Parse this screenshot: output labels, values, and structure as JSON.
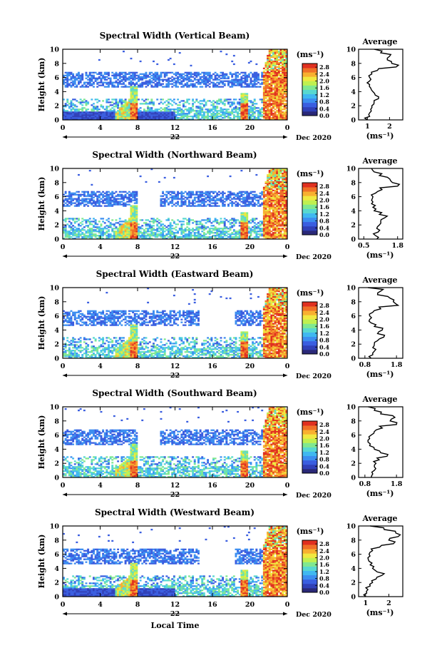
{
  "chart_data": [
    {
      "type": "heatmap",
      "title": "Spectral Width (Vertical Beam)",
      "ylabel": "Height (km)",
      "ylim": [
        0,
        10
      ],
      "yticks": [
        "0",
        "2",
        "4",
        "6",
        "8",
        "10"
      ],
      "xticks": [
        "0",
        "4",
        "8",
        "12",
        "16",
        "20",
        "0"
      ],
      "xlim": [
        0,
        24
      ],
      "date_label": "22",
      "date_suffix": "Dec 2020",
      "colorbar": {
        "unit": "(ms⁻¹)",
        "ticks": [
          "0.0",
          "0.4",
          "0.8",
          "1.2",
          "1.6",
          "2.0",
          "2.4",
          "2.8"
        ]
      },
      "profile": {
        "title": "Average",
        "xlabel": "(ms⁻¹)",
        "xticks": [
          "1",
          "2"
        ],
        "xlim": [
          0.6,
          2.6
        ],
        "height": [
          0,
          0.5,
          1,
          1.5,
          2,
          2.5,
          3,
          3.5,
          4,
          4.5,
          5,
          5.5,
          6,
          6.5,
          7,
          7.5,
          8,
          8.5,
          9,
          9.5,
          10
        ],
        "values": [
          1.0,
          1.1,
          1.1,
          1.15,
          1.2,
          1.3,
          1.5,
          1.35,
          1.25,
          1.15,
          1.1,
          1.1,
          1.1,
          1.2,
          1.45,
          2.3,
          2.1,
          1.9,
          2.0,
          1.6,
          1.3
        ]
      }
    },
    {
      "type": "heatmap",
      "title": "Spectral Width (Northward Beam)",
      "ylabel": "Height (km)",
      "ylim": [
        0,
        10
      ],
      "yticks": [
        "0",
        "2",
        "4",
        "6",
        "8",
        "10"
      ],
      "xticks": [
        "0",
        "4",
        "8",
        "12",
        "16",
        "20",
        "0"
      ],
      "xlim": [
        0,
        24
      ],
      "date_label": "22",
      "date_suffix": "Dec 2020",
      "colorbar": {
        "unit": "(ms⁻¹)",
        "ticks": [
          "0.0",
          "0.4",
          "0.8",
          "1.2",
          "1.6",
          "2.0",
          "2.4",
          "2.8"
        ]
      },
      "profile": {
        "title": "Average",
        "xlabel": "(ms⁻¹)",
        "xticks": [
          "0.5",
          "1.8"
        ],
        "xlim": [
          0.3,
          2.0
        ],
        "height": [
          0,
          0.5,
          1,
          1.5,
          2,
          2.5,
          3,
          3.5,
          4,
          4.5,
          5,
          5.5,
          6,
          6.5,
          7,
          7.5,
          8,
          8.5,
          9,
          9.5,
          10
        ],
        "values": [
          1.0,
          0.95,
          1.05,
          1.0,
          1.1,
          1.15,
          1.3,
          1.1,
          0.9,
          0.85,
          0.8,
          0.8,
          0.85,
          0.95,
          1.2,
          1.8,
          1.6,
          1.5,
          1.1,
          0.9,
          0.8
        ]
      }
    },
    {
      "type": "heatmap",
      "title": "Spectral Width (Eastward Beam)",
      "ylabel": "Height (km)",
      "ylim": [
        0,
        10
      ],
      "yticks": [
        "0",
        "2",
        "4",
        "6",
        "8",
        "10"
      ],
      "xticks": [
        "0",
        "4",
        "8",
        "12",
        "16",
        "20",
        "0"
      ],
      "xlim": [
        0,
        24
      ],
      "date_label": "22",
      "date_suffix": "Dec 2020",
      "colorbar": {
        "unit": "(ms⁻¹)",
        "ticks": [
          "0.0",
          "0.4",
          "0.8",
          "1.2",
          "1.6",
          "2.0",
          "2.4",
          "2.8"
        ]
      },
      "profile": {
        "title": "Average",
        "xlabel": "(ms⁻¹)",
        "xticks": [
          "0.8",
          "1.8"
        ],
        "xlim": [
          0.6,
          2.0
        ],
        "height": [
          0,
          0.5,
          1,
          1.5,
          2,
          2.5,
          3,
          3.5,
          4,
          4.5,
          5,
          5.5,
          6,
          6.5,
          7,
          7.5,
          8,
          8.5,
          9,
          9.5,
          10
        ],
        "values": [
          1.0,
          1.05,
          1.1,
          1.05,
          1.1,
          1.2,
          1.4,
          1.2,
          1.35,
          1.1,
          1.0,
          0.95,
          0.95,
          1.05,
          1.3,
          1.85,
          1.7,
          1.6,
          1.2,
          1.3,
          0.9
        ]
      }
    },
    {
      "type": "heatmap",
      "title": "Spectral Width (Southward Beam)",
      "ylabel": "Height (km)",
      "ylim": [
        0,
        10
      ],
      "yticks": [
        "0",
        "2",
        "4",
        "6",
        "8",
        "10"
      ],
      "xticks": [
        "0",
        "4",
        "8",
        "12",
        "16",
        "20",
        "0"
      ],
      "xlim": [
        0,
        24
      ],
      "date_label": "22",
      "date_suffix": "Dec 2020",
      "colorbar": {
        "unit": "(ms⁻¹)",
        "ticks": [
          "0.0",
          "0.4",
          "0.8",
          "1.2",
          "1.6",
          "2.0",
          "2.4",
          "2.8"
        ]
      },
      "profile": {
        "title": "Average",
        "xlabel": "(ms⁻¹)",
        "xticks": [
          "0.8",
          "1.8"
        ],
        "xlim": [
          0.6,
          2.0
        ],
        "height": [
          0,
          0.5,
          1,
          1.5,
          2,
          2.5,
          3,
          3.5,
          4,
          4.5,
          5,
          5.5,
          6,
          6.5,
          7,
          7.5,
          8,
          8.5,
          9,
          9.5,
          10
        ],
        "values": [
          1.0,
          1.05,
          1.1,
          1.1,
          1.15,
          1.25,
          1.5,
          1.3,
          1.1,
          0.95,
          0.9,
          0.95,
          1.0,
          1.1,
          1.35,
          1.8,
          1.6,
          1.75,
          1.3,
          1.1,
          0.9
        ]
      }
    },
    {
      "type": "heatmap",
      "title": "Spectral Width (Westward Beam)",
      "ylabel": "Height (km)",
      "ylim": [
        0,
        10
      ],
      "yticks": [
        "0",
        "2",
        "4",
        "6",
        "8",
        "10"
      ],
      "xticks": [
        "0",
        "4",
        "8",
        "12",
        "16",
        "20",
        "0"
      ],
      "xlim": [
        0,
        24
      ],
      "date_label": "22",
      "date_suffix": "Dec 2020",
      "xlabel": "Local Time",
      "colorbar": {
        "unit": "(ms⁻¹)",
        "ticks": [
          "0.0",
          "0.4",
          "0.8",
          "1.2",
          "1.6",
          "2.0",
          "2.4",
          "2.8"
        ]
      },
      "profile": {
        "title": "Average",
        "xlabel": "(ms⁻¹)",
        "xticks": [
          "1",
          "2"
        ],
        "xlim": [
          0.7,
          2.6
        ],
        "height": [
          0,
          0.5,
          1,
          1.5,
          2,
          2.5,
          3,
          3.5,
          4,
          4.5,
          5,
          5.5,
          6,
          6.5,
          7,
          7.5,
          8,
          8.5,
          9,
          9.5,
          10
        ],
        "values": [
          1.0,
          1.05,
          1.1,
          1.2,
          1.3,
          1.45,
          1.7,
          1.5,
          1.3,
          1.2,
          1.15,
          1.1,
          1.15,
          1.3,
          1.6,
          2.2,
          2.0,
          2.4,
          2.3,
          1.8,
          1.2
        ]
      }
    }
  ],
  "colors": {
    "scale": [
      "#2a2878",
      "#3040b8",
      "#3a5ee0",
      "#3c8ef0",
      "#40b8f0",
      "#58d8d0",
      "#80e890",
      "#c0f050",
      "#f0e840",
      "#f8b030",
      "#f07028",
      "#e03020"
    ]
  }
}
